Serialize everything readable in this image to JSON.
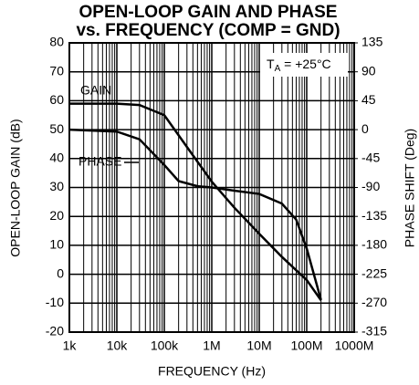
{
  "chart_data": {
    "type": "line",
    "title": [
      "OPEN-LOOP GAIN AND PHASE",
      "vs. FREQUENCY (COMP = GND)"
    ],
    "x_label": "FREQUENCY (Hz)",
    "y_label": "OPEN-LOOP GAIN (dB)",
    "y2_label": "PHASE SHIFT (Deg)",
    "annotation": {
      "main": "T",
      "sub": "A",
      "rest": " = +25°C"
    },
    "xscale": "log",
    "xlim": [
      1000,
      1000000000
    ],
    "xticks": [
      {
        "value": 1000,
        "label": "1k"
      },
      {
        "value": 10000,
        "label": "10k"
      },
      {
        "value": 100000,
        "label": "100k"
      },
      {
        "value": 1000000,
        "label": "1M"
      },
      {
        "value": 10000000,
        "label": "10M"
      },
      {
        "value": 100000000,
        "label": "100M"
      },
      {
        "value": 1000000000,
        "label": "1000M"
      }
    ],
    "ylim": [
      -20,
      80
    ],
    "yticks": [
      -20,
      -10,
      0,
      10,
      20,
      30,
      40,
      50,
      60,
      70,
      80
    ],
    "y2lim": [
      -315,
      135
    ],
    "y2ticks": [
      -315,
      -270,
      -225,
      -180,
      -135,
      -90,
      -45,
      0,
      45,
      90,
      135
    ],
    "grid": true,
    "minor_grid": true,
    "series": [
      {
        "name": "GAIN",
        "color": "#000000",
        "x": [
          1000,
          10000,
          30000,
          100000,
          300000,
          1000000,
          3000000,
          10000000,
          30000000,
          100000000,
          200000000
        ],
        "values": [
          59,
          59,
          58.5,
          55,
          44,
          32,
          23,
          14,
          6,
          -2,
          -9
        ]
      },
      {
        "name": "PHASE",
        "color": "#000000",
        "axis": "y2",
        "x": [
          1000,
          10000,
          30000,
          100000,
          200000,
          500000,
          1000000,
          3000000,
          10000000,
          30000000,
          60000000,
          100000000,
          200000000
        ],
        "values": [
          0,
          -3,
          -15,
          -55,
          -80,
          -88,
          -90,
          -95,
          -100,
          -115,
          -140,
          -185,
          -265
        ]
      }
    ]
  }
}
